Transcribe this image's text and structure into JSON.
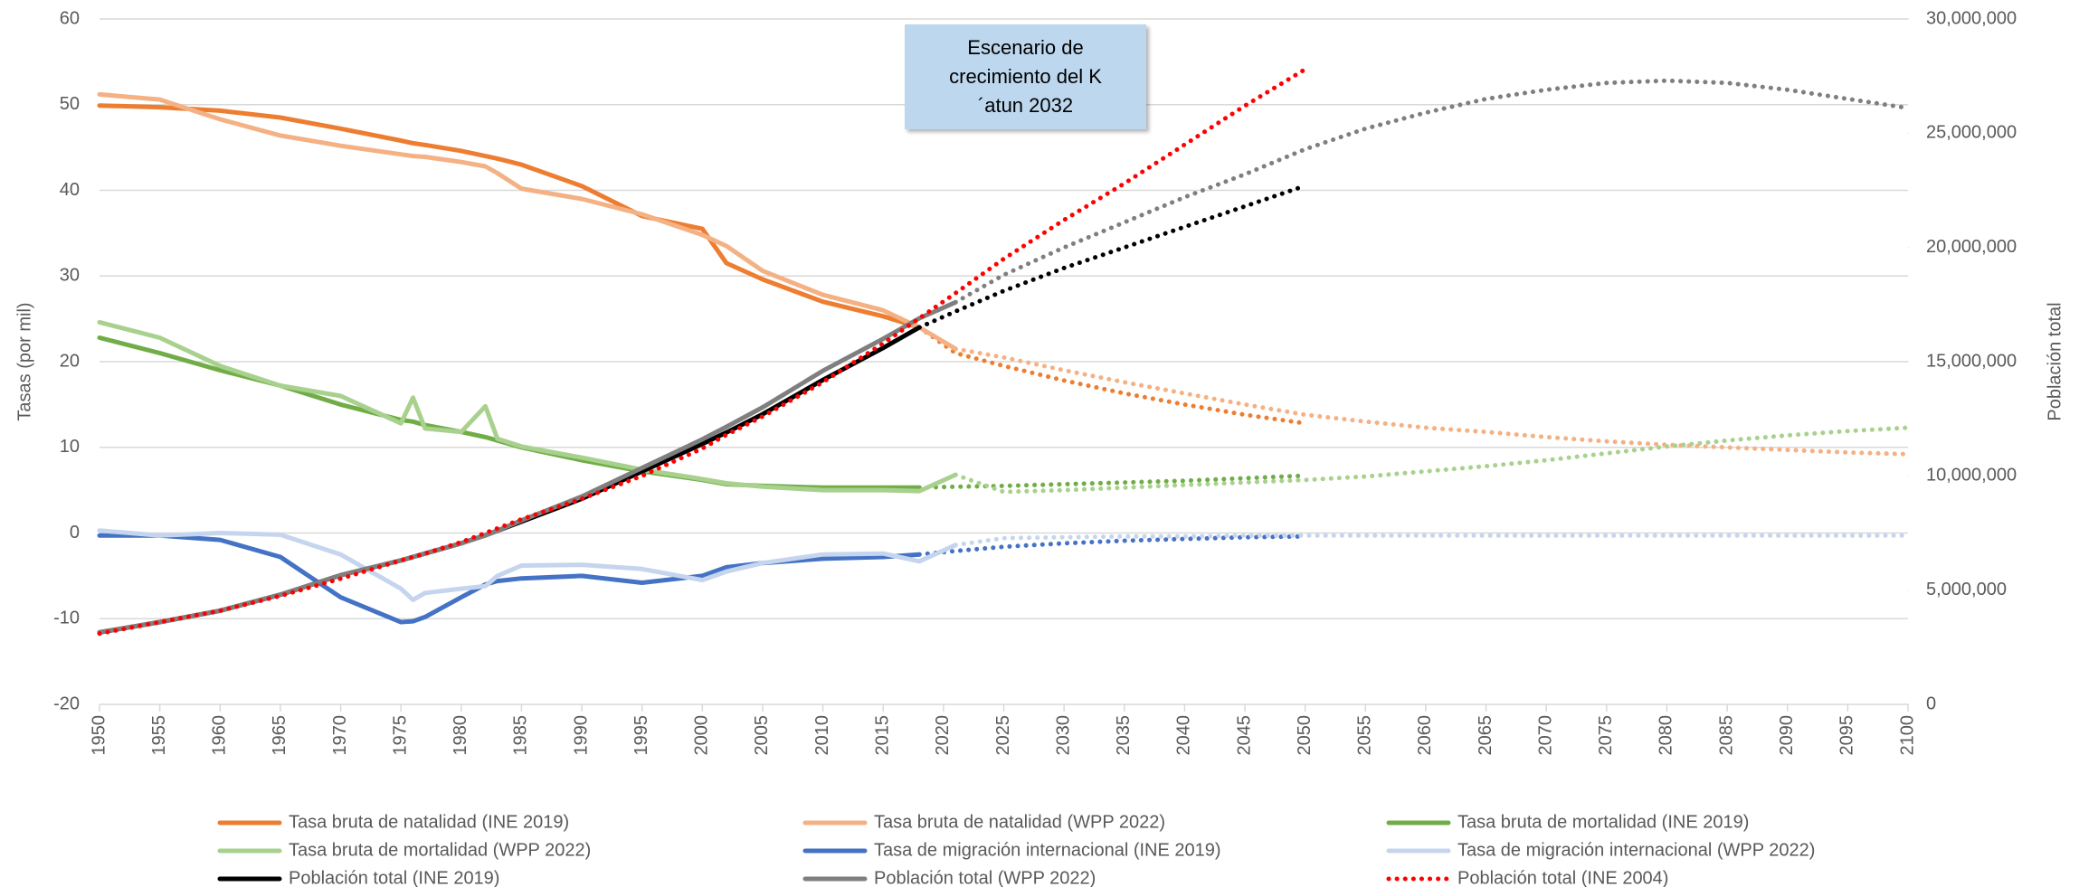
{
  "chart_data": {
    "type": "line",
    "y_label": "Tasas (por mil)",
    "y2_label": "Población total",
    "annotation": "Escenario de crecimiento del K´atun 2032",
    "x": [
      1950,
      1955,
      1960,
      1965,
      1970,
      1975,
      1976,
      1977,
      1980,
      1982,
      1983,
      1985,
      1990,
      1995,
      2000,
      2002,
      2005,
      2010,
      2015,
      2018,
      2021,
      2025,
      2030,
      2035,
      2040,
      2045,
      2050,
      2055,
      2060,
      2065,
      2070,
      2075,
      2080,
      2085,
      2090,
      2095,
      2100
    ],
    "xlim": [
      1950,
      2100
    ],
    "xticks": [
      1950,
      1955,
      1960,
      1965,
      1970,
      1975,
      1980,
      1985,
      1990,
      1995,
      2000,
      2005,
      2010,
      2015,
      2020,
      2025,
      2030,
      2035,
      2040,
      2045,
      2050,
      2055,
      2060,
      2065,
      2070,
      2075,
      2080,
      2085,
      2090,
      2095,
      2100
    ],
    "ylim": [
      -20,
      60
    ],
    "yticks": [
      -20,
      -10,
      0,
      10,
      20,
      30,
      40,
      50,
      60
    ],
    "y2lim": [
      0,
      30000000
    ],
    "y2ticks": [
      0,
      {
        "value": 5000000,
        "label": "5,000,000"
      },
      {
        "value": 10000000,
        "label": "10,000,000"
      },
      {
        "value": 15000000,
        "label": "15,000,000"
      },
      {
        "value": 20000000,
        "label": "20,000,000"
      },
      {
        "value": 25000000,
        "label": "25,000,000"
      },
      {
        "value": 30000000,
        "label": "30,000,000"
      }
    ],
    "grid": true,
    "legend": "bottom",
    "series": [
      {
        "name": "Tasa bruta de natalidad (INE 2019)",
        "color": "#ed7d31",
        "dotted_from": 2018,
        "values": [
          49.9,
          49.7,
          49.3,
          48.5,
          47.2,
          45.8,
          45.5,
          45.3,
          44.6,
          44.0,
          43.7,
          43.0,
          40.5,
          37.0,
          35.5,
          31.5,
          29.6,
          27.0,
          25.3,
          24.0,
          21.0,
          19.5,
          17.8,
          16.3,
          15.0,
          13.8,
          12.8,
          null,
          null,
          null,
          null,
          null,
          null,
          null,
          null,
          null,
          null
        ]
      },
      {
        "name": "Tasa bruta de natalidad (WPP 2022)",
        "color": "#f4b183",
        "dotted_from": 2021,
        "values": [
          51.2,
          50.6,
          48.3,
          46.4,
          45.2,
          44.2,
          44.0,
          43.9,
          43.3,
          42.8,
          42.0,
          40.2,
          39.0,
          37.2,
          34.8,
          33.5,
          30.6,
          27.8,
          26.0,
          24.0,
          21.5,
          20.5,
          19.0,
          17.6,
          16.3,
          15.0,
          13.8,
          13.0,
          12.3,
          11.8,
          11.2,
          10.7,
          10.3,
          10.0,
          9.7,
          9.4,
          9.2
        ]
      },
      {
        "name": "Tasa bruta de mortalidad (INE 2019)",
        "color": "#70ad47",
        "dotted_from": 2018,
        "values": [
          22.8,
          21.0,
          19.0,
          17.2,
          15.0,
          13.2,
          13.0,
          12.6,
          11.8,
          11.2,
          10.8,
          10.0,
          8.5,
          7.2,
          6.2,
          5.7,
          5.5,
          5.3,
          5.3,
          5.3,
          5.4,
          5.5,
          5.7,
          5.9,
          6.1,
          6.4,
          6.7,
          null,
          null,
          null,
          null,
          null,
          null,
          null,
          null,
          null,
          null
        ]
      },
      {
        "name": "Tasa bruta de mortalidad (WPP 2022)",
        "color": "#a9d18e",
        "dotted_from": 2021,
        "values": [
          24.6,
          22.8,
          19.5,
          17.2,
          16.0,
          12.8,
          15.8,
          12.2,
          11.8,
          14.8,
          11.0,
          10.1,
          8.8,
          7.4,
          6.3,
          5.8,
          5.4,
          5.0,
          5.0,
          4.9,
          6.8,
          4.8,
          5.0,
          5.3,
          5.6,
          5.9,
          6.2,
          6.6,
          7.2,
          7.8,
          8.5,
          9.3,
          10.1,
          10.8,
          11.4,
          11.9,
          12.3
        ]
      },
      {
        "name": "Tasa de migración internacional (INE 2019)",
        "color": "#4472c4",
        "dotted_from": 2018,
        "values": [
          -0.3,
          -0.3,
          -0.8,
          -2.8,
          -7.5,
          -10.4,
          -10.3,
          -9.8,
          -7.5,
          -6.0,
          -5.6,
          -5.3,
          -5.0,
          -5.8,
          -5.0,
          -4.0,
          -3.5,
          -3.0,
          -2.8,
          -2.5,
          -2.1,
          -1.6,
          -1.2,
          -0.9,
          -0.7,
          -0.5,
          -0.4,
          null,
          null,
          null,
          null,
          null,
          null,
          null,
          null,
          null,
          null
        ]
      },
      {
        "name": "Tasa de migración internacional (WPP 2022)",
        "color": "#c5d5ee",
        "dotted_from": 2021,
        "values": [
          0.3,
          -0.3,
          0.0,
          -0.2,
          -2.5,
          -6.5,
          -7.8,
          -7.0,
          -6.5,
          -6.2,
          -5.0,
          -3.8,
          -3.7,
          -4.2,
          -5.5,
          -4.5,
          -3.5,
          -2.5,
          -2.4,
          -3.3,
          -1.4,
          -0.6,
          -0.5,
          -0.4,
          -0.4,
          -0.3,
          -0.3,
          -0.3,
          -0.3,
          -0.3,
          -0.3,
          -0.3,
          -0.3,
          -0.3,
          -0.3,
          -0.3,
          -0.3
        ]
      },
      {
        "name": "Población total (INE 2019)",
        "color": "#000000",
        "dotted_from": 2018,
        "axis": "y2",
        "values": [
          3150000,
          3600000,
          4100000,
          4800000,
          5650000,
          6300000,
          6450000,
          6600000,
          7050000,
          7400000,
          7600000,
          8000000,
          9000000,
          10200000,
          11400000,
          11900000,
          12700000,
          14200000,
          15600000,
          16500000,
          17200000,
          18100000,
          19100000,
          20000000,
          20900000,
          21800000,
          22700000,
          null,
          null,
          null,
          null,
          null,
          null,
          null,
          null,
          null,
          null
        ]
      },
      {
        "name": "Población total (WPP 2022)",
        "color": "#7f7f7f",
        "dotted_from": 2021,
        "axis": "y2",
        "values": [
          3150000,
          3600000,
          4100000,
          4800000,
          5650000,
          6300000,
          6450000,
          6600000,
          7050000,
          7400000,
          7600000,
          8050000,
          9100000,
          10350000,
          11600000,
          12150000,
          13000000,
          14600000,
          16000000,
          16900000,
          17600000,
          18800000,
          20000000,
          21100000,
          22200000,
          23200000,
          24300000,
          25200000,
          25900000,
          26500000,
          26900000,
          27200000,
          27300000,
          27200000,
          26900000,
          26500000,
          26100000
        ]
      },
      {
        "name": "Población total (INE 2004)",
        "color": "#ff0000",
        "dotted_from": 1950,
        "axis": "y2",
        "values": [
          3100000,
          3600000,
          4100000,
          4750000,
          5500000,
          6300000,
          6450000,
          6600000,
          7100000,
          7500000,
          7700000,
          8100000,
          9000000,
          10000000,
          11200000,
          11800000,
          12600000,
          14100000,
          15800000,
          16900000,
          18000000,
          19500000,
          21200000,
          22800000,
          24500000,
          26200000,
          27800000,
          null,
          null,
          null,
          null,
          null,
          null,
          null,
          null,
          null,
          null
        ]
      }
    ]
  }
}
